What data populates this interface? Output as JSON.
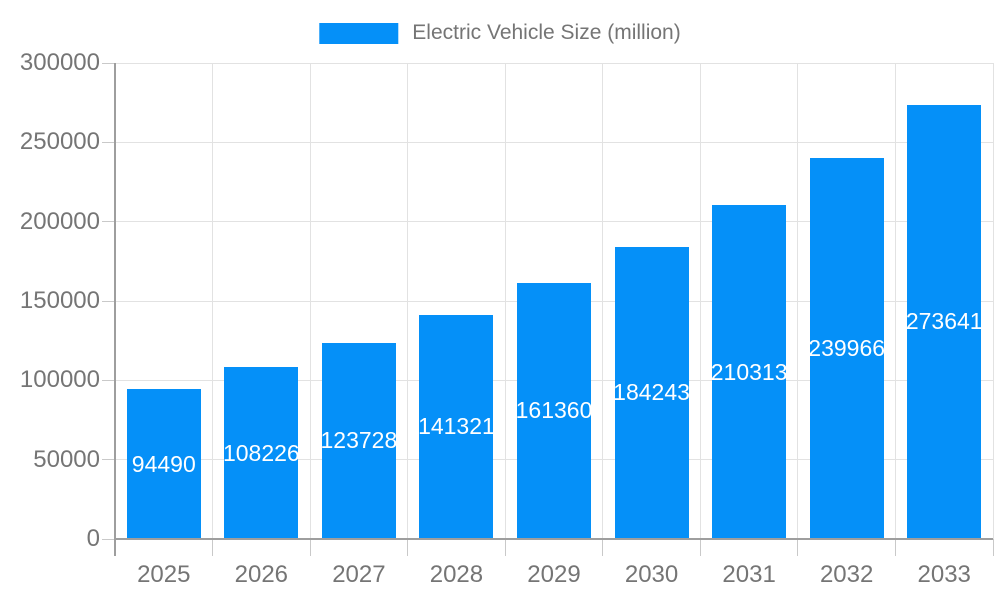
{
  "chart_data": {
    "type": "bar",
    "title": "Electric Vehicle Size (million)",
    "categories": [
      "2025",
      "2026",
      "2027",
      "2028",
      "2029",
      "2030",
      "2031",
      "2032",
      "2033"
    ],
    "values": [
      94490,
      108226,
      123728,
      141321,
      161360,
      184243,
      210313,
      239966,
      273641
    ],
    "yticks": [
      0,
      50000,
      100000,
      150000,
      200000,
      250000,
      300000
    ],
    "ylim": [
      0,
      300000
    ],
    "xlabel": "",
    "ylabel": "",
    "legend_position": "top-center",
    "grid": true,
    "value_labels": "inside-bars"
  },
  "colors": {
    "bar": "#0590f8",
    "axis_text": "#757575",
    "grid_line": "#e2e2e2",
    "tick_line": "#c9c9c9",
    "axis_line": "#9e9e9e",
    "value_label": "#ffffff",
    "background": "#ffffff"
  }
}
